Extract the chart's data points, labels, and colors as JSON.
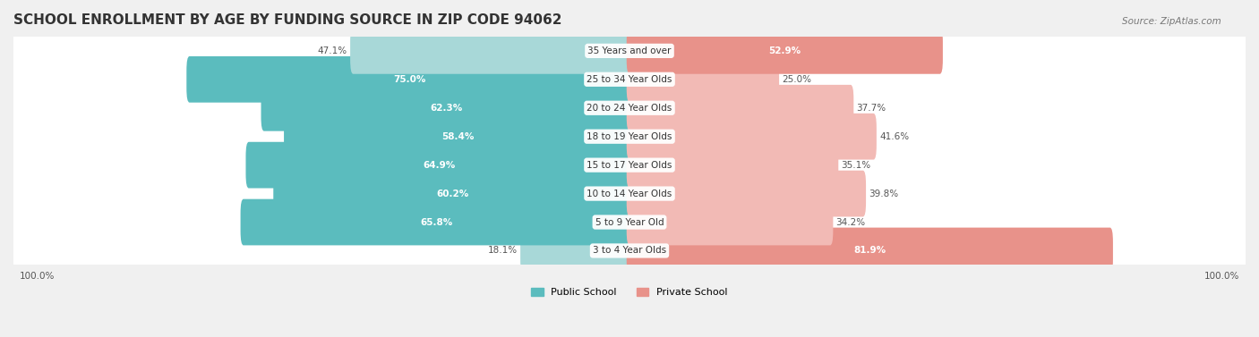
{
  "title": "SCHOOL ENROLLMENT BY AGE BY FUNDING SOURCE IN ZIP CODE 94062",
  "source": "Source: ZipAtlas.com",
  "categories": [
    "3 to 4 Year Olds",
    "5 to 9 Year Old",
    "10 to 14 Year Olds",
    "15 to 17 Year Olds",
    "18 to 19 Year Olds",
    "20 to 24 Year Olds",
    "25 to 34 Year Olds",
    "35 Years and over"
  ],
  "public_pct": [
    18.1,
    65.8,
    60.2,
    64.9,
    58.4,
    62.3,
    75.0,
    47.1
  ],
  "private_pct": [
    81.9,
    34.2,
    39.8,
    35.1,
    41.6,
    37.7,
    25.0,
    52.9
  ],
  "public_color": "#5bbcbe",
  "private_color": "#e8928a",
  "public_color_light": "#a8d8d8",
  "private_color_light": "#f2bab5",
  "bg_color": "#f0f0f0",
  "row_bg": "#f8f8f8",
  "legend_public": "Public School",
  "legend_private": "Private School",
  "axis_label_left": "100.0%",
  "axis_label_right": "100.0%"
}
